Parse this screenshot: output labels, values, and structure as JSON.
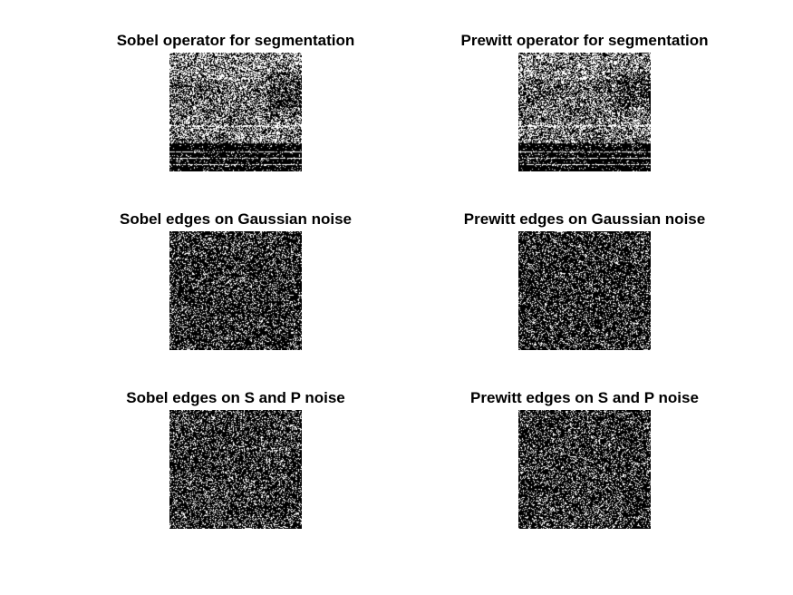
{
  "figure": {
    "background": "#ffffff",
    "panels": [
      {
        "title": "Sobel operator for segmentation",
        "kind": "structured",
        "seed": 11,
        "density": 0.42
      },
      {
        "title": "Prewitt operator for segmentation",
        "kind": "structured",
        "seed": 29,
        "density": 0.4
      },
      {
        "title": "Sobel edges on Gaussian noise",
        "kind": "noise",
        "seed": 47,
        "density": 0.22
      },
      {
        "title": "Prewitt edges on Gaussian noise",
        "kind": "noise",
        "seed": 83,
        "density": 0.21
      },
      {
        "title": "Sobel edges on S and P noise",
        "kind": "noise",
        "seed": 101,
        "density": 0.24
      },
      {
        "title": "Prewitt edges on S and P noise",
        "kind": "noise",
        "seed": 131,
        "density": 0.23
      }
    ]
  }
}
